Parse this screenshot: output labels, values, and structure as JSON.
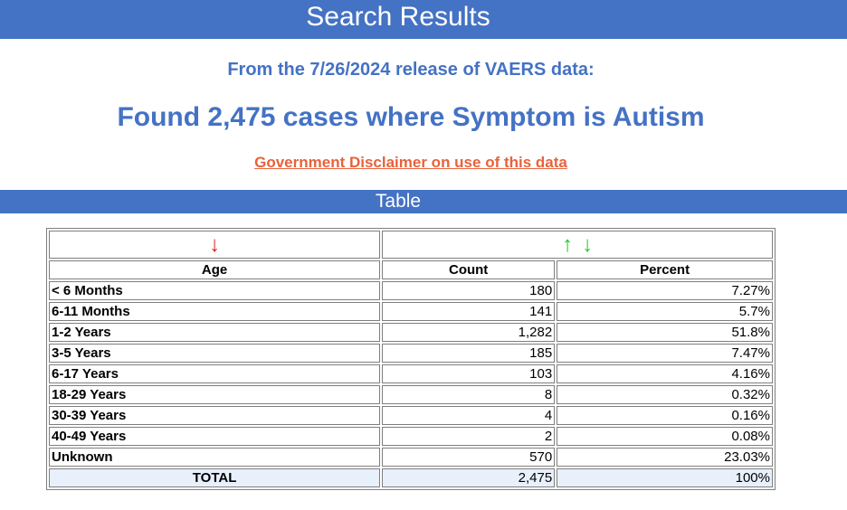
{
  "header": {
    "title": "Search Results"
  },
  "summary": {
    "release_line": "From the 7/26/2024 release of VAERS data:",
    "found_line": "Found 2,475 cases where Symptom is Autism",
    "disclaimer_link": "Government Disclaimer on use of this data"
  },
  "section": {
    "title": "Table"
  },
  "table": {
    "sort_icons": {
      "age_sort": "↓",
      "count_sort_up": "↑",
      "count_sort_down": "↓"
    },
    "headers": {
      "age": "Age",
      "count": "Count",
      "percent": "Percent"
    },
    "rows": [
      {
        "age": "< 6 Months",
        "count": "180",
        "percent": "7.27%"
      },
      {
        "age": "6-11 Months",
        "count": "141",
        "percent": "5.7%"
      },
      {
        "age": "1-2 Years",
        "count": "1,282",
        "percent": "51.8%"
      },
      {
        "age": "3-5 Years",
        "count": "185",
        "percent": "7.47%"
      },
      {
        "age": "6-17 Years",
        "count": "103",
        "percent": "4.16%"
      },
      {
        "age": "18-29 Years",
        "count": "8",
        "percent": "0.32%"
      },
      {
        "age": "30-39 Years",
        "count": "4",
        "percent": "0.16%"
      },
      {
        "age": "40-49 Years",
        "count": "2",
        "percent": "0.08%"
      },
      {
        "age": "Unknown",
        "count": "570",
        "percent": "23.03%"
      }
    ],
    "total": {
      "label": "TOTAL",
      "count": "2,475",
      "percent": "100%"
    }
  },
  "colors": {
    "brand_blue": "#4472c4",
    "link_orange": "#e8623a",
    "sort_red": "#e02020",
    "sort_green": "#22cc22",
    "total_row_bg": "#e8f0fc"
  }
}
